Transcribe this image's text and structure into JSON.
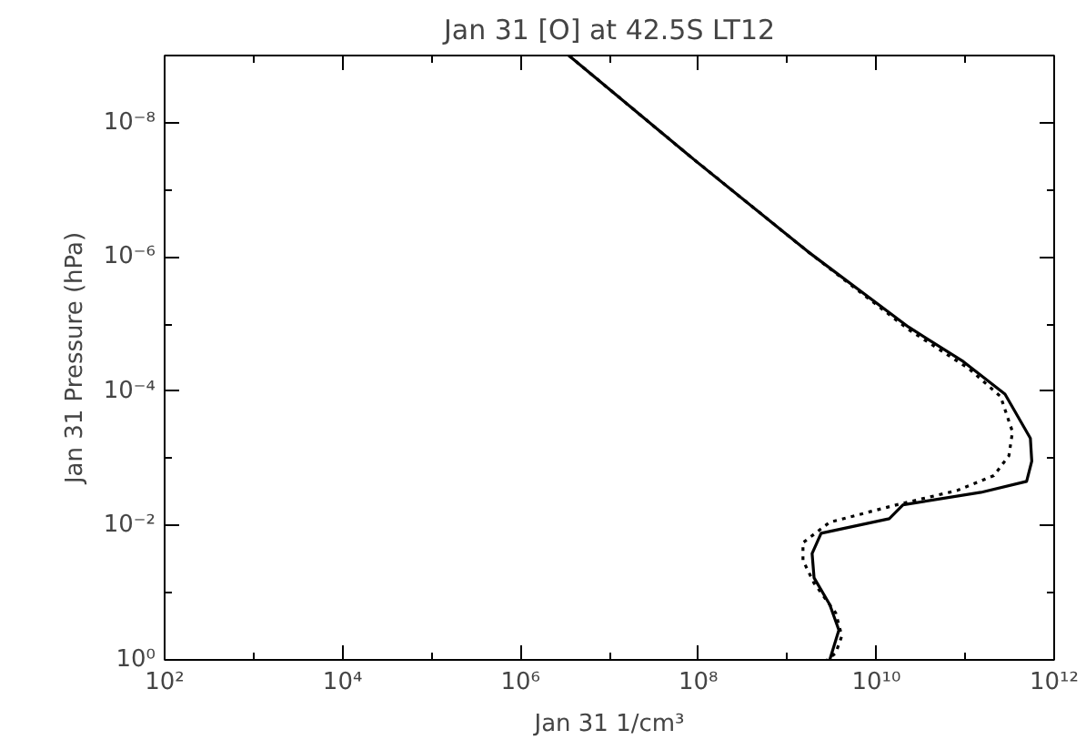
{
  "chart_data": {
    "type": "line",
    "title": "Jan 31 [O] at 42.5S LT12",
    "xlabel": "Jan 31 1/cm³",
    "ylabel": "Jan 31 Pressure (hPa)",
    "log": "xy",
    "grid": false,
    "xlim": [
      100,
      1000000000000.0
    ],
    "ylim": [
      1,
      1e-09
    ],
    "xticks": [
      {
        "value": 100,
        "label": "10²"
      },
      {
        "value": 1000,
        "label": null
      },
      {
        "value": 10000.0,
        "label": "10⁴"
      },
      {
        "value": 100000.0,
        "label": null
      },
      {
        "value": 1000000.0,
        "label": "10⁶"
      },
      {
        "value": 10000000.0,
        "label": null
      },
      {
        "value": 100000000.0,
        "label": "10⁸"
      },
      {
        "value": 1000000000.0,
        "label": null
      },
      {
        "value": 10000000000.0,
        "label": "10¹⁰"
      },
      {
        "value": 100000000000.0,
        "label": null
      },
      {
        "value": 1000000000000.0,
        "label": "10¹²"
      }
    ],
    "yticks": [
      {
        "value": 1,
        "label": "10⁰"
      },
      {
        "value": 0.1,
        "label": null
      },
      {
        "value": 0.01,
        "label": "10⁻²"
      },
      {
        "value": 0.001,
        "label": null
      },
      {
        "value": 0.0001,
        "label": "10⁻⁴"
      },
      {
        "value": 1e-05,
        "label": null
      },
      {
        "value": 1e-06,
        "label": "10⁻⁶"
      },
      {
        "value": 1e-07,
        "label": null
      },
      {
        "value": 1e-08,
        "label": "10⁻⁸"
      }
    ],
    "series": [
      {
        "color": "#000000",
        "line_style": "solid",
        "x": [
          3500000.0,
          79000000.0,
          1700000000.0,
          23000000000.0,
          95000000000.0,
          280000000000.0,
          540000000000.0,
          560000000000.0,
          490000000000.0,
          150000000000.0,
          20000000000.0,
          14000000000.0,
          2400000000.0,
          1900000000.0,
          2000000000.0,
          3000000000.0,
          3800000000.0,
          3300000000.0,
          3000000000.0
        ],
        "values": [
          1e-09,
          3.1e-08,
          8.3e-07,
          1.1e-05,
          3.6e-05,
          0.00011,
          0.0005,
          0.0011,
          0.0022,
          0.0032,
          0.0049,
          0.0079,
          0.013,
          0.026,
          0.06,
          0.15,
          0.36,
          0.66,
          1.0
        ]
      },
      {
        "color": "#000000",
        "line_style": "dotted",
        "x": [
          3500000.0,
          79000000.0,
          1700000000.0,
          23000000000.0,
          110000000000.0,
          250000000000.0,
          340000000000.0,
          310000000000.0,
          210000000000.0,
          81000000000.0,
          17000000000.0,
          3000000000.0,
          1500000000.0,
          1500000000.0,
          2000000000.0,
          3500000000.0,
          4100000000.0,
          3500000000.0,
          2800000000.0
        ],
        "values": [
          1e-09,
          3.1e-08,
          8.3e-07,
          1.2e-05,
          4.6e-05,
          0.00012,
          0.0004,
          0.00091,
          0.0018,
          0.003,
          0.0049,
          0.0089,
          0.018,
          0.033,
          0.072,
          0.2,
          0.44,
          0.79,
          1.0
        ]
      }
    ]
  }
}
